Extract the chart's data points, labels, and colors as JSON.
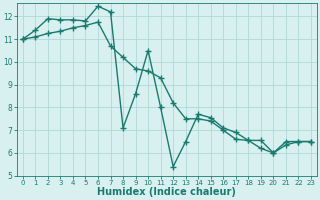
{
  "line_jagged_x": [
    0,
    1,
    2,
    3,
    4,
    5,
    6,
    7,
    8,
    9,
    10,
    11,
    12,
    13,
    14,
    15,
    16,
    17,
    18,
    19,
    20,
    21,
    22,
    23
  ],
  "line_jagged_y": [
    11.0,
    11.4,
    11.9,
    11.85,
    11.85,
    11.8,
    12.45,
    12.2,
    7.1,
    8.6,
    10.5,
    8.0,
    5.4,
    6.5,
    7.7,
    7.55,
    7.1,
    6.9,
    6.55,
    6.55,
    6.0,
    6.5,
    6.5,
    6.5
  ],
  "line_smooth_x": [
    0,
    1,
    2,
    3,
    4,
    5,
    6,
    7,
    8,
    9,
    10,
    11,
    12,
    13,
    14,
    15,
    16,
    17,
    18,
    19,
    20,
    21,
    22,
    23
  ],
  "line_smooth_y": [
    11.0,
    11.1,
    11.25,
    11.35,
    11.5,
    11.6,
    11.75,
    10.7,
    10.2,
    9.7,
    9.6,
    9.3,
    8.2,
    7.5,
    7.5,
    7.4,
    7.0,
    6.6,
    6.55,
    6.2,
    6.0,
    6.35,
    6.5,
    6.5
  ],
  "color": "#1a7a6e",
  "bg_color": "#d8f0f0",
  "grid_color": "#afd8d8",
  "xlabel": "Humidex (Indice chaleur)",
  "ylim": [
    5,
    12.6
  ],
  "xlim": [
    -0.5,
    23.5
  ],
  "yticks": [
    5,
    6,
    7,
    8,
    9,
    10,
    11,
    12
  ],
  "xticks": [
    0,
    1,
    2,
    3,
    4,
    5,
    6,
    7,
    8,
    9,
    10,
    11,
    12,
    13,
    14,
    15,
    16,
    17,
    18,
    19,
    20,
    21,
    22,
    23
  ],
  "marker": "+",
  "markersize": 4,
  "linewidth": 1.0,
  "tick_fontsize": 5.5,
  "xlabel_fontsize": 7
}
